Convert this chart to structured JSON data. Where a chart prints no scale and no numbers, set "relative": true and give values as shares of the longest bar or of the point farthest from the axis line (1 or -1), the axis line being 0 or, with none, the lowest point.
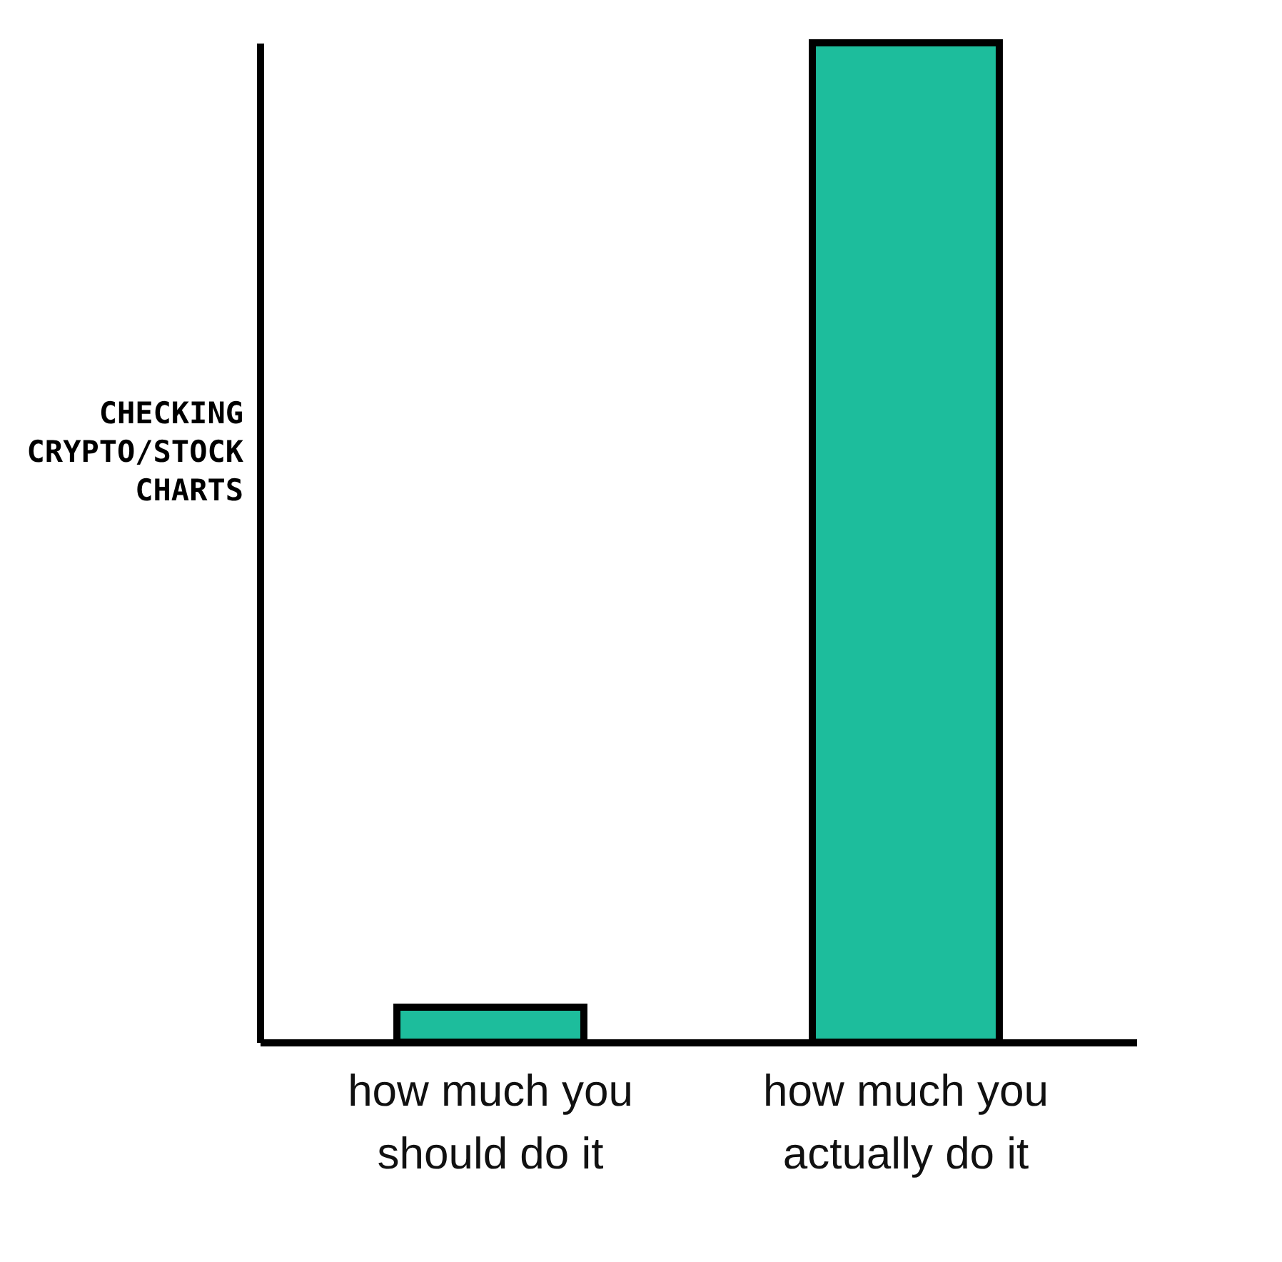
{
  "chart_data": {
    "type": "bar",
    "relative": true,
    "ylabel": "CHECKING CRYPTO/STOCK CHARTS",
    "categories": [
      "how much you should do it",
      "how much you actually do it"
    ],
    "values": [
      0.035,
      1
    ],
    "color": "#1dbd9c"
  }
}
